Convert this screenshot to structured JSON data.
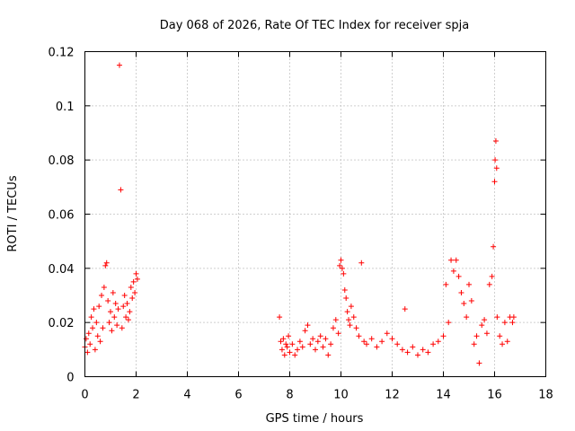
{
  "chart_data": {
    "type": "scatter",
    "title": "Day 068 of 2026, Rate Of TEC Index for receiver spja",
    "xlabel": "GPS time / hours",
    "ylabel": "ROTI / TECUs",
    "xlim": [
      0,
      18
    ],
    "ylim": [
      0,
      0.12
    ],
    "xticks": [
      0,
      2,
      4,
      6,
      8,
      10,
      12,
      14,
      16,
      18
    ],
    "xtick_labels": [
      "0",
      "2",
      "4",
      "6",
      "8",
      "10",
      "12",
      "14",
      "16",
      "18"
    ],
    "yticks": [
      0,
      0.02,
      0.04,
      0.06,
      0.08,
      0.1,
      0.12
    ],
    "ytick_labels": [
      "0",
      "0.02",
      "0.04",
      "0.06",
      "0.08",
      "0.1",
      "0.12"
    ],
    "grid": true,
    "marker": "+",
    "color": "#ff0000",
    "series": [
      {
        "name": "ROTI",
        "points": [
          [
            0.0,
            0.011
          ],
          [
            0.05,
            0.014
          ],
          [
            0.1,
            0.009
          ],
          [
            0.15,
            0.016
          ],
          [
            0.2,
            0.012
          ],
          [
            0.25,
            0.022
          ],
          [
            0.3,
            0.018
          ],
          [
            0.35,
            0.025
          ],
          [
            0.4,
            0.01
          ],
          [
            0.45,
            0.02
          ],
          [
            0.5,
            0.015
          ],
          [
            0.55,
            0.026
          ],
          [
            0.6,
            0.013
          ],
          [
            0.65,
            0.03
          ],
          [
            0.7,
            0.018
          ],
          [
            0.75,
            0.033
          ],
          [
            0.8,
            0.041
          ],
          [
            0.85,
            0.042
          ],
          [
            0.9,
            0.028
          ],
          [
            0.95,
            0.02
          ],
          [
            1.0,
            0.024
          ],
          [
            1.05,
            0.017
          ],
          [
            1.1,
            0.031
          ],
          [
            1.15,
            0.022
          ],
          [
            1.2,
            0.027
          ],
          [
            1.25,
            0.019
          ],
          [
            1.3,
            0.025
          ],
          [
            1.35,
            0.115
          ],
          [
            1.4,
            0.069
          ],
          [
            1.45,
            0.018
          ],
          [
            1.5,
            0.026
          ],
          [
            1.55,
            0.03
          ],
          [
            1.6,
            0.022
          ],
          [
            1.65,
            0.027
          ],
          [
            1.7,
            0.021
          ],
          [
            1.75,
            0.024
          ],
          [
            1.8,
            0.033
          ],
          [
            1.85,
            0.029
          ],
          [
            1.9,
            0.035
          ],
          [
            1.95,
            0.031
          ],
          [
            2.0,
            0.038
          ],
          [
            2.05,
            0.036
          ],
          [
            7.6,
            0.022
          ],
          [
            7.65,
            0.013
          ],
          [
            7.7,
            0.01
          ],
          [
            7.75,
            0.014
          ],
          [
            7.8,
            0.008
          ],
          [
            7.85,
            0.012
          ],
          [
            7.9,
            0.011
          ],
          [
            7.95,
            0.015
          ],
          [
            8.0,
            0.009
          ],
          [
            8.1,
            0.012
          ],
          [
            8.2,
            0.008
          ],
          [
            8.3,
            0.01
          ],
          [
            8.4,
            0.013
          ],
          [
            8.5,
            0.011
          ],
          [
            8.6,
            0.017
          ],
          [
            8.7,
            0.019
          ],
          [
            8.8,
            0.012
          ],
          [
            8.9,
            0.014
          ],
          [
            9.0,
            0.01
          ],
          [
            9.1,
            0.013
          ],
          [
            9.2,
            0.015
          ],
          [
            9.3,
            0.011
          ],
          [
            9.4,
            0.014
          ],
          [
            9.5,
            0.008
          ],
          [
            9.6,
            0.012
          ],
          [
            9.7,
            0.018
          ],
          [
            9.8,
            0.021
          ],
          [
            9.9,
            0.016
          ],
          [
            9.95,
            0.041
          ],
          [
            10.0,
            0.043
          ],
          [
            10.05,
            0.04
          ],
          [
            10.1,
            0.038
          ],
          [
            10.15,
            0.032
          ],
          [
            10.2,
            0.029
          ],
          [
            10.25,
            0.024
          ],
          [
            10.3,
            0.021
          ],
          [
            10.35,
            0.019
          ],
          [
            10.4,
            0.026
          ],
          [
            10.5,
            0.022
          ],
          [
            10.6,
            0.018
          ],
          [
            10.7,
            0.015
          ],
          [
            10.8,
            0.042
          ],
          [
            10.9,
            0.013
          ],
          [
            11.0,
            0.012
          ],
          [
            11.2,
            0.014
          ],
          [
            11.4,
            0.011
          ],
          [
            11.6,
            0.013
          ],
          [
            11.8,
            0.016
          ],
          [
            12.0,
            0.014
          ],
          [
            12.2,
            0.012
          ],
          [
            12.4,
            0.01
          ],
          [
            12.5,
            0.025
          ],
          [
            12.6,
            0.009
          ],
          [
            12.8,
            0.011
          ],
          [
            13.0,
            0.008
          ],
          [
            13.2,
            0.01
          ],
          [
            13.4,
            0.009
          ],
          [
            13.6,
            0.012
          ],
          [
            13.8,
            0.013
          ],
          [
            14.0,
            0.015
          ],
          [
            14.1,
            0.034
          ],
          [
            14.2,
            0.02
          ],
          [
            14.3,
            0.043
          ],
          [
            14.4,
            0.039
          ],
          [
            14.5,
            0.043
          ],
          [
            14.6,
            0.037
          ],
          [
            14.7,
            0.031
          ],
          [
            14.8,
            0.027
          ],
          [
            14.9,
            0.022
          ],
          [
            15.0,
            0.034
          ],
          [
            15.1,
            0.028
          ],
          [
            15.2,
            0.012
          ],
          [
            15.3,
            0.015
          ],
          [
            15.4,
            0.005
          ],
          [
            15.5,
            0.019
          ],
          [
            15.6,
            0.021
          ],
          [
            15.7,
            0.016
          ],
          [
            15.8,
            0.034
          ],
          [
            15.9,
            0.037
          ],
          [
            15.95,
            0.048
          ],
          [
            16.0,
            0.072
          ],
          [
            16.02,
            0.08
          ],
          [
            16.05,
            0.087
          ],
          [
            16.08,
            0.077
          ],
          [
            16.1,
            0.022
          ],
          [
            16.2,
            0.015
          ],
          [
            16.3,
            0.012
          ],
          [
            16.4,
            0.02
          ],
          [
            16.5,
            0.013
          ],
          [
            16.6,
            0.022
          ],
          [
            16.7,
            0.02
          ],
          [
            16.75,
            0.022
          ]
        ]
      }
    ]
  }
}
